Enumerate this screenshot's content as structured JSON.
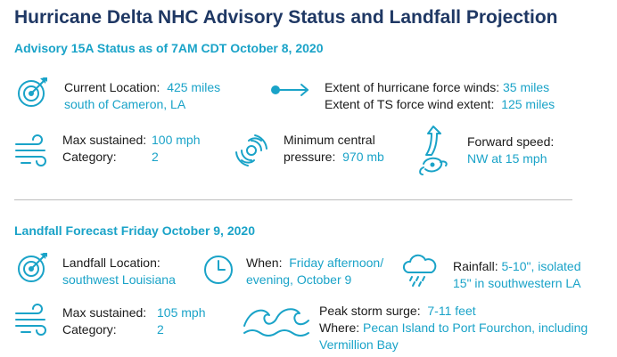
{
  "title": "Hurricane Delta NHC Advisory Status and Landfall Projection",
  "advisory": {
    "heading": "Advisory 15A Status as of 7AM CDT October 8, 2020",
    "location_label": "Current Location:",
    "location_value_1": "425 miles",
    "location_value_2": "south of Cameron, LA",
    "hurricane_winds_label": "Extent of hurricane force winds:",
    "hurricane_winds_value": "35 miles",
    "ts_winds_label": "Extent of TS force wind extent:",
    "ts_winds_value": "125 miles",
    "max_sustained_label": "Max sustained:",
    "max_sustained_value": "100 mph",
    "category_label": "Category:",
    "category_value": "2",
    "pressure_label_1": "Minimum central",
    "pressure_label_2": "pressure:",
    "pressure_value": "970 mb",
    "forward_speed_label": "Forward speed:",
    "forward_speed_value": "NW at 15 mph"
  },
  "landfall": {
    "heading": "Landfall Forecast Friday October 9, 2020",
    "location_label": "Landfall Location:",
    "location_value": "southwest Louisiana",
    "when_label": "When:",
    "when_value_1": "Friday afternoon/",
    "when_value_2": "evening, October 9",
    "rainfall_label": "Rainfall:",
    "rainfall_value_1": "5-10\", isolated",
    "rainfall_value_2": "15\" in southwestern LA",
    "max_sustained_label": "Max sustained:",
    "max_sustained_value": "105 mph",
    "category_label": "Category:",
    "category_value": "2",
    "surge_label": "Peak storm surge:",
    "surge_value": "7-11 feet",
    "where_label": "Where:",
    "where_value_1": "Pecan Island to Port Fourchon, including",
    "where_value_2": "Vermillion Bay"
  },
  "colors": {
    "title": "#1f3864",
    "accent": "#1aa3c8",
    "divider": "#bdbdbd"
  },
  "icons": [
    "target-icon",
    "arrow-right-icon",
    "wind-icon",
    "hurricane-icon",
    "track-arrow-icon",
    "clock-icon",
    "rain-cloud-icon",
    "waves-icon"
  ]
}
